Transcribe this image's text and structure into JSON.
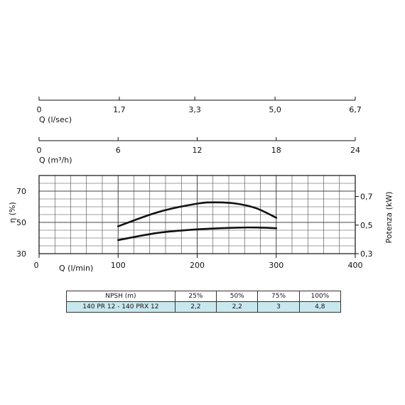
{
  "colors": {
    "ink": "#111111",
    "grid": "#444444",
    "table_row": "#c8e8ee"
  },
  "chart_data": [
    {
      "type": "axis",
      "xlabel": "Q (l/sec)",
      "xlim": [
        0,
        6.7
      ],
      "ticks": [
        {
          "v": 0,
          "label": "0"
        },
        {
          "v": 1.7,
          "label": "1,7"
        },
        {
          "v": 3.3,
          "label": "3,3"
        },
        {
          "v": 5.0,
          "label": "5,0"
        },
        {
          "v": 6.7,
          "label": "6,7"
        }
      ]
    },
    {
      "type": "axis",
      "xlabel": "Q (m³/h)",
      "xlim": [
        0,
        24
      ],
      "ticks": [
        {
          "v": 0,
          "label": "0"
        },
        {
          "v": 6,
          "label": "6"
        },
        {
          "v": 12,
          "label": "12"
        },
        {
          "v": 18,
          "label": "18"
        },
        {
          "v": 24,
          "label": "24"
        }
      ]
    },
    {
      "type": "line",
      "xlabel": "Q (l/min)",
      "xlim": [
        0,
        400
      ],
      "xticks": [
        {
          "v": 0,
          "label": "0"
        },
        {
          "v": 100,
          "label": "100"
        },
        {
          "v": 200,
          "label": "200"
        },
        {
          "v": 300,
          "label": "300"
        },
        {
          "v": 400,
          "label": "400"
        }
      ],
      "ylabel": "η (%)",
      "ylim": [
        30,
        80
      ],
      "yticks": [
        {
          "v": 30,
          "label": "30"
        },
        {
          "v": 50,
          "label": "50"
        },
        {
          "v": 70,
          "label": "70"
        }
      ],
      "y2label": "Potenza (kW)",
      "y2lim": [
        0.3,
        0.847
      ],
      "y2ticks": [
        {
          "v": 0.3,
          "label": "0,3"
        },
        {
          "v": 0.5,
          "label": "0,5"
        },
        {
          "v": 0.7,
          "label": "0,7"
        }
      ],
      "grid": true,
      "series": [
        {
          "axis": "y",
          "x": [
            100,
            150,
            200,
            225,
            250,
            275,
            300
          ],
          "values": [
            47.5,
            56.5,
            62,
            62.8,
            62,
            59,
            53
          ]
        },
        {
          "axis": "y2",
          "x": [
            100,
            150,
            200,
            250,
            275,
            300
          ],
          "values": [
            0.395,
            0.445,
            0.47,
            0.482,
            0.483,
            0.478
          ]
        }
      ]
    }
  ],
  "npsh_table": {
    "header": [
      "NPSH (m)",
      "25%",
      "50%",
      "75%",
      "100%"
    ],
    "rows": [
      [
        "140 PR 12 - 140 PRX 12",
        "2,2",
        "2,2",
        "3",
        "4,8"
      ]
    ]
  }
}
